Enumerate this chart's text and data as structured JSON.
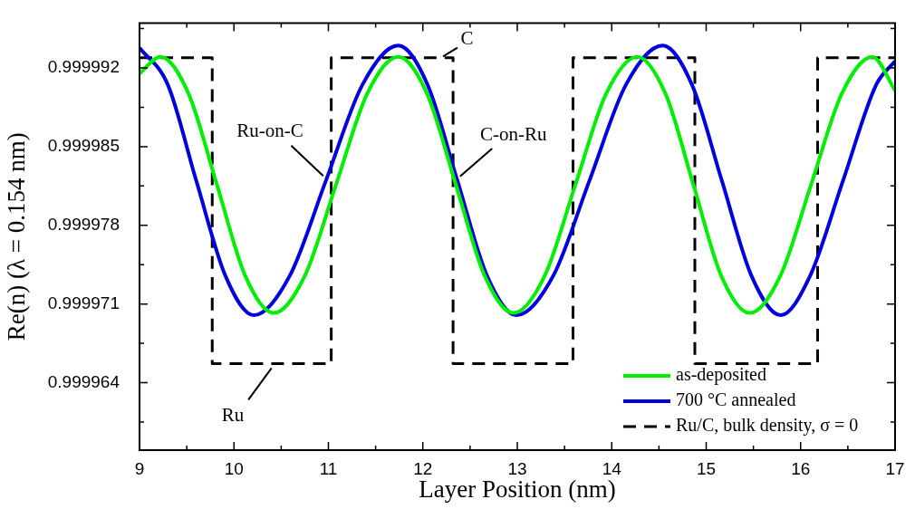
{
  "chart_data": {
    "type": "line",
    "xlabel": "Layer Position (nm)",
    "ylabel": "Re(n) (λ = 0.154 nm)",
    "xlim": [
      9,
      17
    ],
    "ylim": [
      0.999958,
      0.999996
    ],
    "xticks": [
      9,
      {
        "value": 9.5,
        "label": null
      },
      10,
      {
        "value": 10.5,
        "label": null
      },
      11,
      {
        "value": 11.5,
        "label": null
      },
      12,
      {
        "value": 12.5,
        "label": null
      },
      13,
      {
        "value": 13.5,
        "label": null
      },
      14,
      {
        "value": 14.5,
        "label": null
      },
      15,
      {
        "value": 15.5,
        "label": null
      },
      16,
      {
        "value": 16.5,
        "label": null
      },
      17
    ],
    "yticks": [
      {
        "value": 0.9999605,
        "label": null
      },
      0.999964,
      {
        "value": 0.9999675,
        "label": null
      },
      0.999971,
      {
        "value": 0.9999745,
        "label": null
      },
      0.999978,
      {
        "value": 0.9999815,
        "label": null
      },
      0.999985,
      {
        "value": 0.9999885,
        "label": null
      },
      0.999992,
      {
        "value": 0.9999955,
        "label": null
      }
    ],
    "grid": false,
    "legend": "bottom right",
    "marker": "none",
    "series": [
      {
        "name": "as-deposited",
        "color": "#00ee00",
        "line_style": "solid",
        "x": [
          9,
          9.22,
          9.52,
          9.82,
          10.12,
          10.42,
          10.75,
          11.08,
          11.41,
          11.74,
          12.045,
          12.35,
          12.655,
          12.96,
          13.29,
          13.615,
          13.94,
          14.27,
          14.57,
          14.865,
          15.16,
          15.46,
          15.785,
          16.11,
          16.435,
          16.76,
          17
        ],
        "values": [
          0.9999915,
          0.999993,
          0.9999897,
          0.9999816,
          0.9999735,
          0.9999702,
          0.9999735,
          0.9999816,
          0.9999897,
          0.999993,
          0.9999897,
          0.9999816,
          0.9999735,
          0.9999702,
          0.9999735,
          0.9999816,
          0.9999897,
          0.999993,
          0.9999897,
          0.9999816,
          0.9999735,
          0.9999702,
          0.9999735,
          0.9999816,
          0.9999897,
          0.999993,
          0.99999
        ]
      },
      {
        "name": "700 °C annealed",
        "color": "#0000dd",
        "line_style": "solid",
        "x": [
          9,
          9.3,
          9.6,
          9.91,
          10.21,
          10.59,
          10.975,
          11.36,
          11.74,
          12.05,
          12.365,
          12.68,
          12.99,
          13.38,
          13.765,
          14.15,
          14.54,
          14.85,
          15.165,
          15.48,
          15.79,
          16.1,
          16.45,
          16.8,
          17
        ],
        "values": [
          0.9999938,
          0.9999905,
          0.999982,
          0.9999735,
          0.99997,
          0.9999735,
          0.999982,
          0.9999905,
          0.999994,
          0.9999905,
          0.999982,
          0.9999735,
          0.99997,
          0.9999735,
          0.999982,
          0.9999905,
          0.999994,
          0.9999905,
          0.999982,
          0.9999735,
          0.99997,
          0.9999735,
          0.999982,
          0.9999905,
          0.9999926
        ]
      },
      {
        "name": "Ru/C, bulk density, σ = 0",
        "color": "#000000",
        "line_style": "dashed",
        "x": [
          9,
          9.77,
          9.77,
          11.03,
          11.03,
          12.32,
          12.32,
          13.59,
          13.59,
          14.88,
          14.88,
          16.18,
          16.18,
          17
        ],
        "values": [
          0.9999929,
          0.9999929,
          0.9999657,
          0.9999657,
          0.9999929,
          0.9999929,
          0.9999657,
          0.9999657,
          0.9999929,
          0.9999929,
          0.9999657,
          0.9999657,
          0.9999929,
          0.9999929
        ]
      }
    ],
    "annotations": [
      {
        "text": "C",
        "x": 12.2,
        "y": 0.9999929
      },
      {
        "text": "Ru-on-C",
        "x": 10.975,
        "y": 0.999982
      },
      {
        "text": "C-on-Ru",
        "x": 12.365,
        "y": 0.999982
      },
      {
        "text": "Ru",
        "x": 10.42,
        "y": 0.9999657
      }
    ]
  }
}
